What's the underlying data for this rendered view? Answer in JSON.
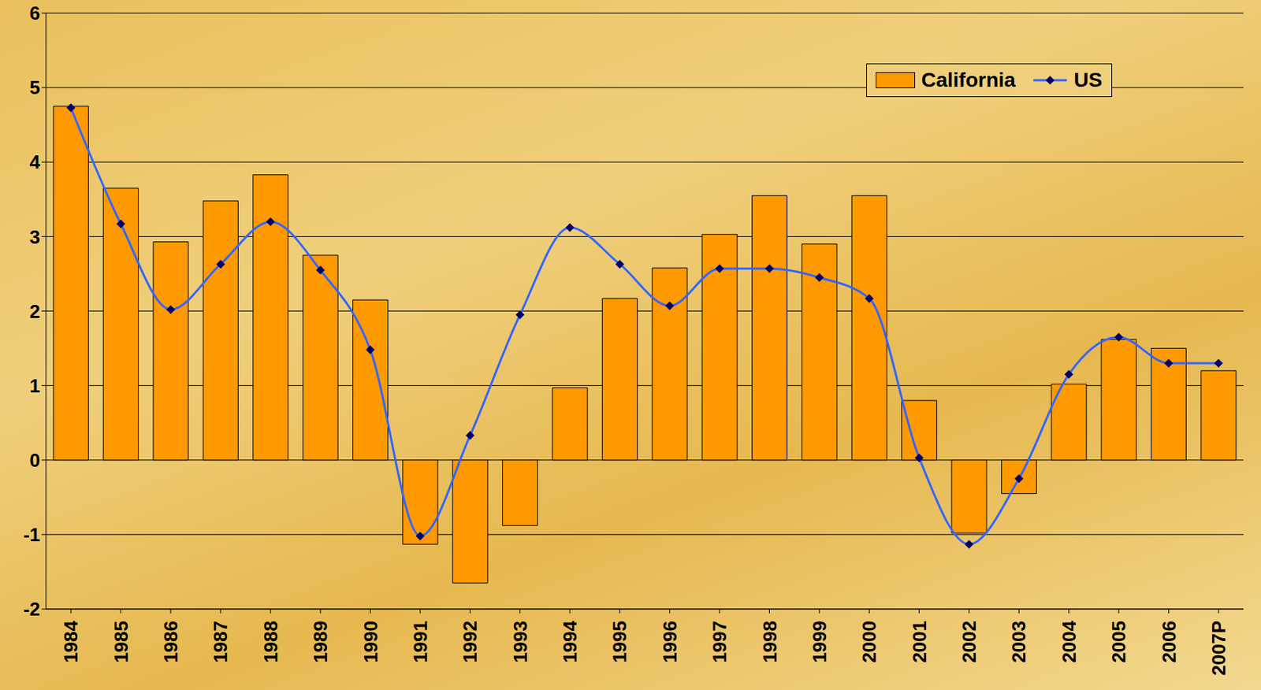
{
  "chart_data": {
    "type": "bar",
    "categories": [
      "1984",
      "1985",
      "1986",
      "1987",
      "1988",
      "1989",
      "1990",
      "1991",
      "1992",
      "1993",
      "1994",
      "1995",
      "1996",
      "1997",
      "1998",
      "1999",
      "2000",
      "2001",
      "2002",
      "2003",
      "2004",
      "2005",
      "2006",
      "2007P"
    ],
    "series": [
      {
        "name": "California",
        "type": "bar",
        "color": "#ff9900",
        "values": [
          4.75,
          3.65,
          2.93,
          3.48,
          3.83,
          2.75,
          2.15,
          -1.13,
          -1.65,
          -0.88,
          0.97,
          2.17,
          2.58,
          3.03,
          3.55,
          2.9,
          3.55,
          0.8,
          -0.98,
          -0.45,
          1.02,
          1.62,
          1.5,
          1.2
        ]
      },
      {
        "name": "US",
        "type": "line",
        "color": "#3366ff",
        "marker": "diamond",
        "line_style": "solid",
        "values": [
          4.73,
          3.17,
          2.02,
          2.63,
          3.2,
          2.55,
          1.48,
          -1.02,
          0.33,
          1.95,
          3.12,
          2.63,
          2.07,
          2.57,
          2.57,
          2.45,
          2.17,
          0.03,
          -1.13,
          -0.25,
          1.15,
          1.65,
          1.3,
          1.3
        ]
      }
    ],
    "ylim": [
      -2,
      6
    ],
    "yticks": [
      -2,
      -1,
      0,
      1,
      2,
      3,
      4,
      5,
      6
    ],
    "grid": true,
    "legend": "upper right"
  }
}
